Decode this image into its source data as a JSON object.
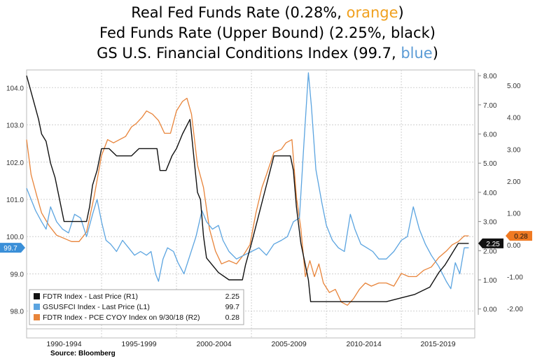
{
  "title": {
    "line1_prefix": "Real Fed Funds Rate (0.28%, ",
    "line1_colored": "orange",
    "line1_suffix": ")",
    "line2": "Fed Funds Rate (Upper Bound) (2.25%, black)",
    "line3_prefix": "GS U.S. Financial Conditions Index (99.7, ",
    "line3_colored": "blue",
    "line3_suffix": ")",
    "orange_word_color": "#f0a01e",
    "blue_word_color": "#5b9bd5"
  },
  "source": "Source: Bloomberg",
  "chart_data": {
    "type": "line",
    "xlim": [
      1990,
      2019.9
    ],
    "x_period_labels": [
      "1990-1994",
      "1995-1999",
      "2000-2004",
      "2005-2009",
      "2010-2014",
      "2015-2019"
    ],
    "left_axis": {
      "range": [
        97.9,
        104.4
      ],
      "ticks": [
        "98.0",
        "99.0",
        "100.0",
        "101.0",
        "102.0",
        "103.0",
        "104.0"
      ],
      "tick_values": [
        98,
        99,
        100,
        101,
        102,
        103,
        104
      ]
    },
    "right_axis_outer": {
      "range": [
        -0.2,
        8.1
      ],
      "ticks": [
        "0.00",
        "1.00",
        "2.00",
        "3.00",
        "4.00",
        "5.00",
        "6.00",
        "7.00",
        "8.00"
      ],
      "tick_values": [
        0,
        1,
        2,
        3,
        4,
        5,
        6,
        7,
        8
      ]
    },
    "right_axis_inner": {
      "range": [
        -2.2,
        5.4
      ],
      "ticks": [
        "-2.00",
        "-1.00",
        "0.00",
        "1.00",
        "2.00",
        "3.00",
        "4.00",
        "5.00"
      ],
      "tick_values": [
        -2,
        -1,
        0,
        1,
        2,
        3,
        4,
        5
      ]
    },
    "end_labels": {
      "blue": "99.7",
      "black": "2.25",
      "orange": "0.28"
    },
    "colors": {
      "black": "#111111",
      "blue": "#5ba4e0",
      "orange": "#e8843a",
      "orange_tag": "#f07a22",
      "blue_tag": "#3a8fd8"
    },
    "legend": [
      {
        "label": "FDTR Index - Last Price (R1)",
        "value": "2.25",
        "color": "#111111"
      },
      {
        "label": "GSUSFCI Index - Last Price (L1)",
        "value": "99.7",
        "color": "#5ba4e0"
      },
      {
        "label": "FDTR Index - PCE CYOY Index on 9/30/18 (R2)",
        "value": "0.28",
        "color": "#e8843a"
      }
    ],
    "series": [
      {
        "key": "black",
        "axis": "right_outer",
        "x": [
          1990.0,
          1990.4,
          1990.8,
          1991.0,
          1991.3,
          1991.6,
          1991.9,
          1992.2,
          1992.5,
          1993.0,
          1993.5,
          1994.0,
          1994.2,
          1994.4,
          1994.7,
          1995.0,
          1995.5,
          1996.0,
          1996.5,
          1997.0,
          1997.5,
          1998.0,
          1998.7,
          1998.9,
          1999.3,
          1999.7,
          2000.0,
          2000.4,
          2000.9,
          2001.0,
          2001.2,
          2001.4,
          2001.6,
          2001.8,
          2002.0,
          2002.8,
          2003.5,
          2004.4,
          2004.6,
          2005.0,
          2005.5,
          2006.0,
          2006.5,
          2007.0,
          2007.6,
          2007.8,
          2008.0,
          2008.3,
          2008.8,
          2008.95,
          2010.0,
          2012.0,
          2014.0,
          2015.9,
          2016.9,
          2017.2,
          2017.5,
          2017.9,
          2018.2,
          2018.5,
          2018.8,
          2019.2,
          2019.5
        ],
        "y": [
          8.0,
          7.25,
          6.5,
          6.0,
          5.75,
          5.0,
          4.5,
          3.75,
          3.0,
          3.0,
          3.0,
          3.0,
          3.5,
          4.25,
          4.75,
          5.5,
          5.5,
          5.25,
          5.25,
          5.25,
          5.5,
          5.5,
          5.5,
          4.75,
          4.75,
          5.25,
          5.5,
          6.0,
          6.5,
          6.0,
          5.0,
          4.0,
          3.75,
          2.5,
          1.75,
          1.25,
          1.0,
          1.0,
          1.5,
          2.25,
          3.25,
          4.25,
          5.25,
          5.25,
          5.25,
          4.75,
          3.5,
          2.25,
          1.0,
          0.25,
          0.25,
          0.25,
          0.25,
          0.5,
          0.75,
          1.0,
          1.25,
          1.5,
          1.75,
          2.0,
          2.25,
          2.25,
          2.25
        ]
      },
      {
        "key": "orange",
        "axis": "right_inner",
        "x": [
          1990.0,
          1990.3,
          1990.7,
          1991.0,
          1991.5,
          1992.0,
          1992.5,
          1993.0,
          1993.5,
          1994.0,
          1994.5,
          1995.0,
          1995.4,
          1995.8,
          1996.2,
          1996.6,
          1997.0,
          1997.3,
          1997.7,
          1998.0,
          1998.4,
          1998.8,
          1999.2,
          1999.6,
          2000.0,
          2000.4,
          2000.7,
          2001.0,
          2001.4,
          2001.8,
          2002.2,
          2002.6,
          2003.0,
          2003.5,
          2004.0,
          2004.5,
          2004.9,
          2005.3,
          2005.7,
          2006.0,
          2006.5,
          2007.0,
          2007.3,
          2007.7,
          2008.0,
          2008.3,
          2008.6,
          2008.9,
          2009.2,
          2009.5,
          2009.8,
          2010.2,
          2010.6,
          2011.0,
          2011.4,
          2011.8,
          2012.2,
          2012.6,
          2013.0,
          2013.5,
          2014.0,
          2014.5,
          2015.0,
          2015.5,
          2016.0,
          2016.5,
          2017.0,
          2017.5,
          2018.0,
          2018.4,
          2018.8,
          2019.2,
          2019.5
        ],
        "y": [
          3.3,
          2.2,
          1.5,
          1.0,
          0.6,
          0.3,
          0.2,
          0.1,
          0.1,
          0.4,
          1.5,
          2.8,
          3.3,
          3.2,
          3.3,
          3.4,
          3.7,
          3.8,
          4.0,
          4.2,
          4.1,
          3.9,
          3.5,
          3.5,
          4.2,
          4.5,
          4.6,
          4.1,
          2.5,
          1.8,
          0.5,
          -0.2,
          -0.6,
          -0.5,
          -0.6,
          -0.3,
          0.0,
          1.0,
          1.8,
          2.2,
          2.9,
          3.0,
          3.2,
          3.3,
          1.5,
          0.5,
          -1.0,
          -0.5,
          -1.0,
          -0.6,
          -1.2,
          -1.5,
          -1.4,
          -1.8,
          -1.9,
          -1.7,
          -1.4,
          -1.2,
          -1.3,
          -1.2,
          -1.2,
          -1.3,
          -0.9,
          -1.0,
          -1.0,
          -0.8,
          -0.7,
          -0.4,
          -0.2,
          0.0,
          0.1,
          0.28,
          0.28
        ]
      },
      {
        "key": "blue",
        "axis": "left",
        "x": [
          1990.0,
          1990.3,
          1990.6,
          1991.0,
          1991.3,
          1991.6,
          1992.0,
          1992.4,
          1992.8,
          1993.2,
          1993.6,
          1994.0,
          1994.4,
          1994.7,
          1995.0,
          1995.3,
          1995.6,
          1996.0,
          1996.4,
          1996.8,
          1997.2,
          1997.6,
          1998.0,
          1998.3,
          1998.6,
          1998.8,
          1999.1,
          1999.4,
          1999.8,
          2000.1,
          2000.5,
          2000.9,
          2001.3,
          2001.7,
          2002.0,
          2002.4,
          2002.8,
          2003.1,
          2003.5,
          2004.0,
          2004.5,
          2005.0,
          2005.5,
          2006.0,
          2006.5,
          2007.0,
          2007.4,
          2007.8,
          2008.2,
          2008.5,
          2008.8,
          2009.0,
          2009.3,
          2009.7,
          2010.0,
          2010.4,
          2010.8,
          2011.2,
          2011.6,
          2011.9,
          2012.3,
          2012.7,
          2013.1,
          2013.5,
          2014.0,
          2014.5,
          2015.0,
          2015.4,
          2015.8,
          2016.2,
          2016.6,
          2017.0,
          2017.5,
          2018.0,
          2018.3,
          2018.6,
          2018.9,
          2019.2,
          2019.5
        ],
        "y": [
          101.3,
          101.0,
          100.7,
          100.4,
          100.2,
          100.8,
          100.4,
          100.2,
          100.1,
          100.6,
          100.5,
          100.0,
          100.6,
          101.0,
          100.4,
          99.9,
          99.8,
          99.6,
          99.9,
          99.7,
          99.5,
          99.6,
          99.5,
          99.6,
          99.0,
          98.8,
          99.4,
          99.7,
          99.6,
          99.3,
          99.0,
          99.5,
          100.0,
          100.7,
          100.4,
          100.2,
          100.3,
          99.9,
          99.6,
          99.4,
          99.5,
          99.6,
          99.7,
          99.5,
          99.8,
          99.9,
          100.0,
          100.4,
          100.5,
          102.5,
          104.4,
          103.5,
          101.8,
          100.9,
          100.3,
          99.9,
          99.7,
          99.6,
          100.6,
          100.2,
          99.8,
          99.7,
          99.6,
          99.4,
          99.4,
          99.6,
          99.9,
          100.0,
          100.8,
          100.2,
          99.8,
          99.5,
          99.2,
          98.8,
          98.6,
          99.3,
          99.0,
          99.7,
          99.7
        ]
      }
    ]
  }
}
